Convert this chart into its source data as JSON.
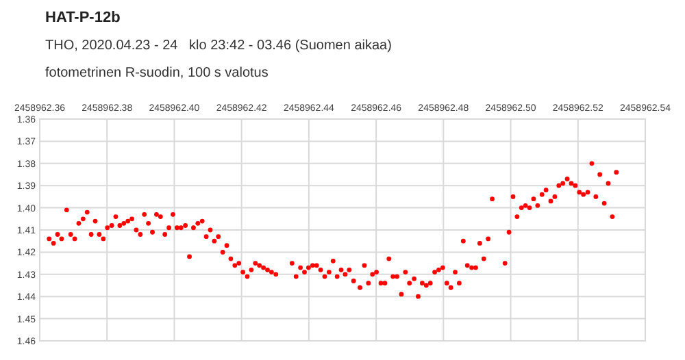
{
  "chart_data": {
    "type": "scatter",
    "title": "HAT-P-12b",
    "subtitle": "THO, 2020.04.23 - 24   klo 23:42 - 03.46 (Suomen aikaa)",
    "annotations": [
      "fotometrinen R-suodin, 100 s valotus"
    ],
    "x": [
      2458962.3628,
      2458962.3641,
      2458962.3653,
      2458962.3665,
      2458962.368,
      2458962.3692,
      2458962.3704,
      2458962.3716,
      2458962.3729,
      2458962.3741,
      2458962.3753,
      2458962.3765,
      2458962.3777,
      2458962.3789,
      2458962.3801,
      2458962.3814,
      2458962.3826,
      2458962.3838,
      2458962.385,
      2458962.3862,
      2458962.3874,
      2458962.3887,
      2458962.3899,
      2458962.3911,
      2458962.3923,
      2458962.3935,
      2458962.3947,
      2458962.3959,
      2458962.3972,
      2458962.3984,
      2458962.3996,
      2458962.4008,
      2458962.402,
      2458962.4033,
      2458962.4045,
      2458962.4057,
      2458962.407,
      2458962.4083,
      2458962.4095,
      2458962.4107,
      2458962.4119,
      2458962.4131,
      2458962.4144,
      2458962.4156,
      2458962.4168,
      2458962.418,
      2458962.4192,
      2458962.4204,
      2458962.4217,
      2458962.4229,
      2458962.4241,
      2458962.4253,
      2458962.4265,
      2458962.4277,
      2458962.4289,
      2458962.4302,
      2458962.435,
      2458962.4362,
      2458962.4375,
      2458962.4387,
      2458962.4399,
      2458962.4411,
      2458962.4423,
      2458962.4435,
      2458962.4447,
      2458962.446,
      2458962.4472,
      2458962.4484,
      2458962.4496,
      2458962.4508,
      2458962.452,
      2458962.4533,
      2458962.4552,
      2458962.4565,
      2458962.4577,
      2458962.4589,
      2458962.4601,
      2458962.4614,
      2458962.4626,
      2458962.4638,
      2458962.465,
      2458962.4662,
      2458962.4675,
      2458962.4687,
      2458962.4699,
      2458962.4713,
      2458962.4725,
      2458962.4737,
      2458962.4749,
      2458962.4761,
      2458962.4774,
      2458962.4786,
      2458962.4798,
      2458962.481,
      2458962.4822,
      2458962.4835,
      2458962.4847,
      2458962.4859,
      2458962.4871,
      2458962.4884,
      2458962.4896,
      2458962.4908,
      2458962.492,
      2458962.4933,
      2458962.4945,
      2458962.4983,
      2458962.4995,
      2458962.5007,
      2458962.5019,
      2458962.5032,
      2458962.5044,
      2458962.5056,
      2458962.5068,
      2458962.508,
      2458962.5093,
      2458962.5105,
      2458962.5119,
      2458962.5131,
      2458962.5143,
      2458962.5155,
      2458962.5168,
      2458962.518,
      2458962.5192,
      2458962.5204,
      2458962.5216,
      2458962.5229,
      2458962.5241,
      2458962.5253,
      2458962.5265,
      2458962.5278,
      2458962.529,
      2458962.5302,
      2458962.5314
    ],
    "series": [
      {
        "color": "#ff0000",
        "values": [
          1.414,
          1.416,
          1.412,
          1.414,
          1.401,
          1.412,
          1.414,
          1.407,
          1.405,
          1.402,
          1.412,
          1.406,
          1.412,
          1.414,
          1.409,
          1.408,
          1.404,
          1.408,
          1.407,
          1.406,
          1.405,
          1.41,
          1.412,
          1.403,
          1.407,
          1.411,
          1.403,
          1.404,
          1.412,
          1.409,
          1.403,
          1.409,
          1.409,
          1.408,
          1.422,
          1.409,
          1.407,
          1.406,
          1.413,
          1.41,
          1.415,
          1.413,
          1.42,
          1.417,
          1.423,
          1.426,
          1.425,
          1.429,
          1.431,
          1.428,
          1.425,
          1.426,
          1.427,
          1.428,
          1.429,
          1.43,
          1.425,
          1.431,
          1.427,
          1.429,
          1.427,
          1.426,
          1.426,
          1.428,
          1.431,
          1.429,
          1.424,
          1.431,
          1.428,
          1.43,
          1.428,
          1.433,
          1.436,
          1.426,
          1.434,
          1.43,
          1.429,
          1.434,
          1.434,
          1.423,
          1.431,
          1.431,
          1.439,
          1.429,
          1.434,
          1.432,
          1.44,
          1.434,
          1.435,
          1.434,
          1.429,
          1.428,
          1.427,
          1.434,
          1.436,
          1.429,
          1.434,
          1.415,
          1.426,
          1.427,
          1.427,
          1.416,
          1.423,
          1.414,
          1.396,
          1.425,
          1.411,
          1.395,
          1.404,
          1.4,
          1.399,
          1.4,
          1.396,
          1.399,
          1.394,
          1.392,
          1.397,
          1.395,
          1.39,
          1.389,
          1.387,
          1.389,
          1.39,
          1.393,
          1.394,
          1.393,
          1.38,
          1.395,
          1.385,
          1.398,
          1.389,
          1.404,
          1.384
        ]
      }
    ],
    "marker": "circle",
    "grid": true,
    "xlim": [
      2458962.36,
      2458962.54
    ],
    "xticks": [
      2458962.36,
      2458962.38,
      {
        "value": 2458962.4,
        "label": "2458962.40"
      },
      2458962.42,
      2458962.44,
      2458962.46,
      2458962.48,
      {
        "value": 2458962.5,
        "label": "2458962.50"
      },
      2458962.52,
      2458962.54
    ],
    "ylim": [
      1.46,
      1.36
    ],
    "yticks": [
      1.36,
      1.37,
      1.38,
      1.39,
      {
        "value": 1.4,
        "label": "1.40"
      },
      1.41,
      1.42,
      1.43,
      1.44,
      1.45,
      1.46
    ]
  }
}
